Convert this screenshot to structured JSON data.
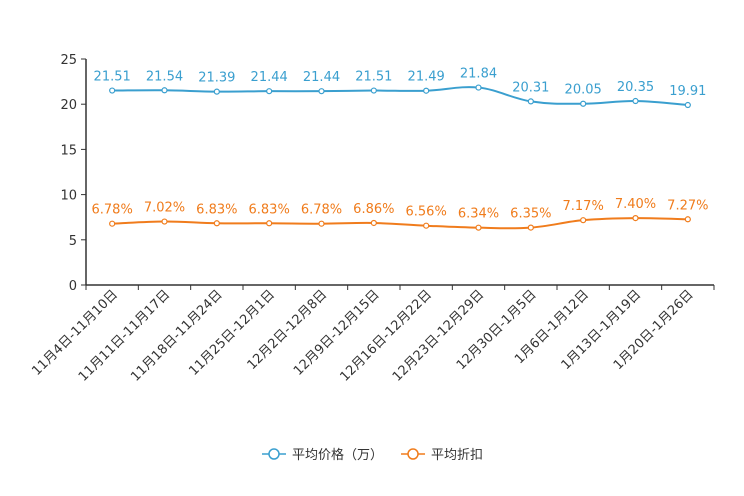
{
  "chart_data": {
    "type": "line",
    "title": "",
    "xlabel": "",
    "ylabel": "",
    "ylim": [
      0,
      25
    ],
    "yticks": [
      0,
      5,
      10,
      15,
      20,
      25
    ],
    "grid": false,
    "legend_position": "bottom-center",
    "categories": [
      "11月4日-11月10日",
      "11月11日-11月17日",
      "11月18日-11月24日",
      "11月25日-12月1日",
      "12月2日-12月8日",
      "12月9日-12月15日",
      "12月16日-12月22日",
      "12月23日-12月29日",
      "12月30日-1月5日",
      "1月6日-1月12日",
      "1月13日-1月19日",
      "1月20日-1月26日"
    ],
    "series": [
      {
        "name": "平均价格（万）",
        "color": "#3a9fcf",
        "values": [
          21.51,
          21.54,
          21.39,
          21.44,
          21.44,
          21.51,
          21.49,
          21.84,
          20.31,
          20.05,
          20.35,
          19.91
        ],
        "labels": [
          "21.51",
          "21.54",
          "21.39",
          "21.44",
          "21.44",
          "21.51",
          "21.49",
          "21.84",
          "20.31",
          "20.05",
          "20.35",
          "19.91"
        ]
      },
      {
        "name": "平均折扣",
        "color": "#f07c1c",
        "values": [
          6.78,
          7.02,
          6.83,
          6.83,
          6.78,
          6.86,
          6.56,
          6.34,
          6.35,
          7.17,
          7.4,
          7.27
        ],
        "labels": [
          "6.78%",
          "7.02%",
          "6.83%",
          "6.83%",
          "6.78%",
          "6.86%",
          "6.56%",
          "6.34%",
          "6.35%",
          "7.17%",
          "7.40%",
          "7.27%"
        ]
      }
    ]
  }
}
